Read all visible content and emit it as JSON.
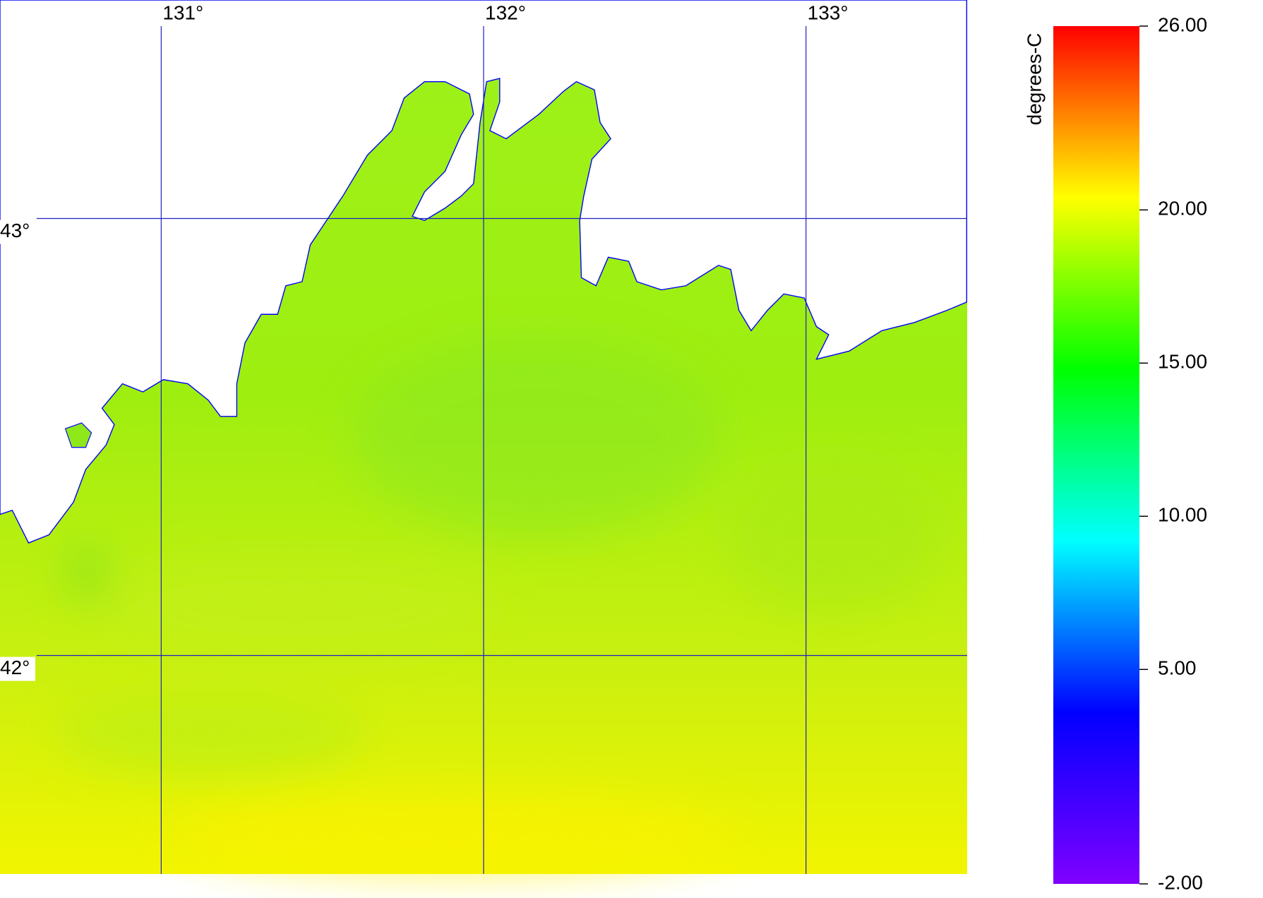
{
  "map": {
    "extent": {
      "lon": [
        130.5,
        133.5
      ],
      "lat": [
        41.5,
        43.5
      ]
    },
    "lon_labels": [
      {
        "value": 131,
        "label": "131°"
      },
      {
        "value": 132,
        "label": "132°"
      },
      {
        "value": 133,
        "label": "133°"
      }
    ],
    "lat_labels": [
      {
        "value": 43,
        "label": "43°"
      },
      {
        "value": 42,
        "label": "42°"
      }
    ],
    "grid_color": "#2020c0"
  },
  "colorbar": {
    "title": "degrees-C",
    "range": [
      -2,
      26
    ],
    "ticks": [
      {
        "value": 26,
        "label": "26.00"
      },
      {
        "value": 20,
        "label": "20.00"
      },
      {
        "value": 15,
        "label": "15.00"
      },
      {
        "value": 10,
        "label": "10.00"
      },
      {
        "value": 5,
        "label": "5.00"
      },
      {
        "value": -2,
        "label": "-2.00"
      }
    ],
    "colors": [
      "#8000ff",
      "#0000ff",
      "#00ffff",
      "#00ff00",
      "#ffff00",
      "#ff0000"
    ]
  }
}
